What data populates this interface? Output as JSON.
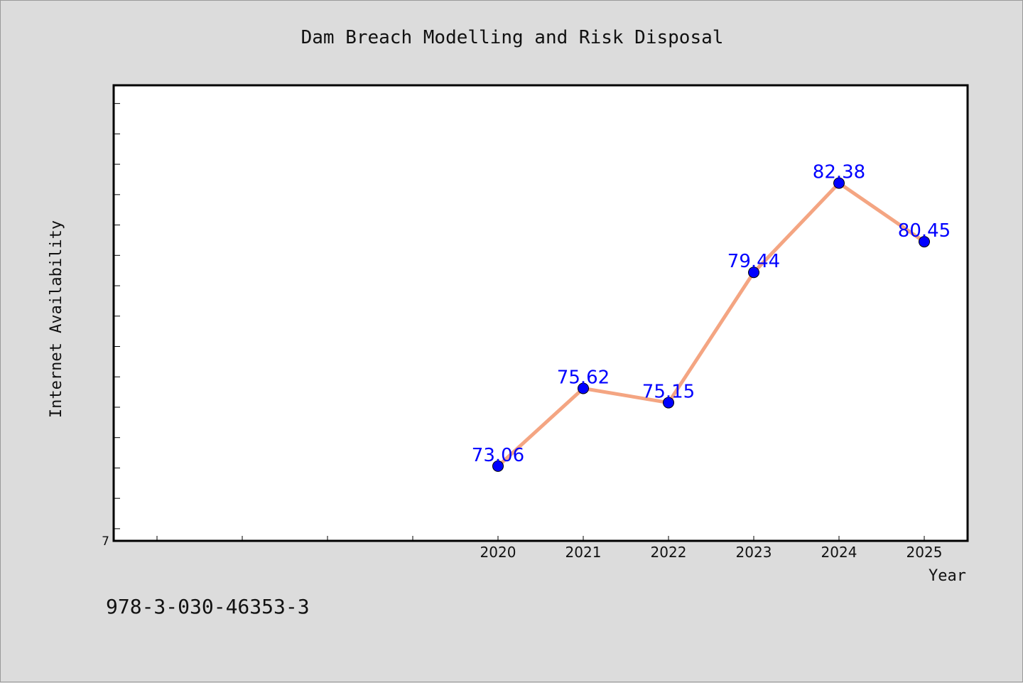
{
  "page": {
    "background": "#dcdcdc",
    "footnote": "978-3-030-46353-3"
  },
  "chart_data": {
    "type": "line",
    "title": "Dam Breach Modelling and Risk Disposal",
    "xlabel": "Year",
    "ylabel": "Internet Availability",
    "categories": [
      "2020",
      "2021",
      "2022",
      "2023",
      "2024",
      "2025"
    ],
    "series": [
      {
        "values": [
          73.06,
          75.62,
          75.15,
          79.44,
          82.38,
          80.45
        ],
        "data_labels": [
          "73.06",
          "75.62",
          "75.15",
          "79.44",
          "82.38",
          "80.45"
        ],
        "line_color": "#f4a582",
        "marker_color": "#0000ff"
      }
    ],
    "y_min_label": "7",
    "ylim": [
      70.6,
      85.6
    ],
    "y_minor_step": 1,
    "grid": false,
    "legend": "none",
    "plot_background": "#ffffff"
  }
}
